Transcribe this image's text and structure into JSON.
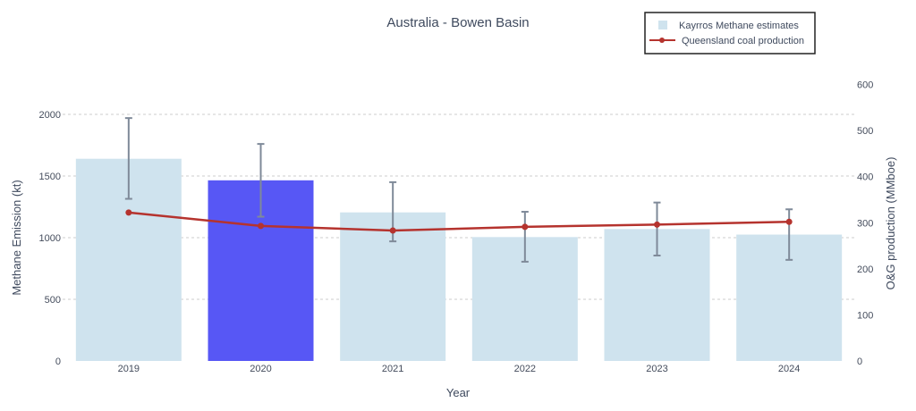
{
  "chart_data": {
    "type": "bar+line",
    "title": "Australia - Bowen Basin",
    "xlabel": "Year",
    "ylabel": "Methane Emission (kt)",
    "y2label": "O&G production (MMboe)",
    "categories": [
      "2019",
      "2020",
      "2021",
      "2022",
      "2023",
      "2024"
    ],
    "ylim": [
      0,
      2000
    ],
    "y2lim": [
      0,
      600
    ],
    "yticks": [
      "0",
      "500",
      "1000",
      "1500",
      "2000"
    ],
    "y2ticks": [
      "0",
      "100",
      "200",
      "300",
      "400",
      "500",
      "600"
    ],
    "grid": true,
    "legend_position": "top-right",
    "series": [
      {
        "name": "Kayrros Methane estimates",
        "type": "bar",
        "axis": "left",
        "values": [
          1640,
          1465,
          1205,
          1005,
          1070,
          1025
        ],
        "error_low": [
          1315,
          1170,
          970,
          805,
          855,
          820
        ],
        "error_high": [
          1970,
          1760,
          1450,
          1210,
          1285,
          1230
        ],
        "color": "#cfe3ee",
        "highlight_index": 1,
        "highlight_color": "#5757f5",
        "error_color": "#7f8a99"
      },
      {
        "name": "Queensland coal production",
        "type": "line",
        "axis": "right",
        "values": [
          322,
          293,
          283,
          291,
          296,
          302
        ],
        "color": "#b5332e"
      }
    ]
  }
}
